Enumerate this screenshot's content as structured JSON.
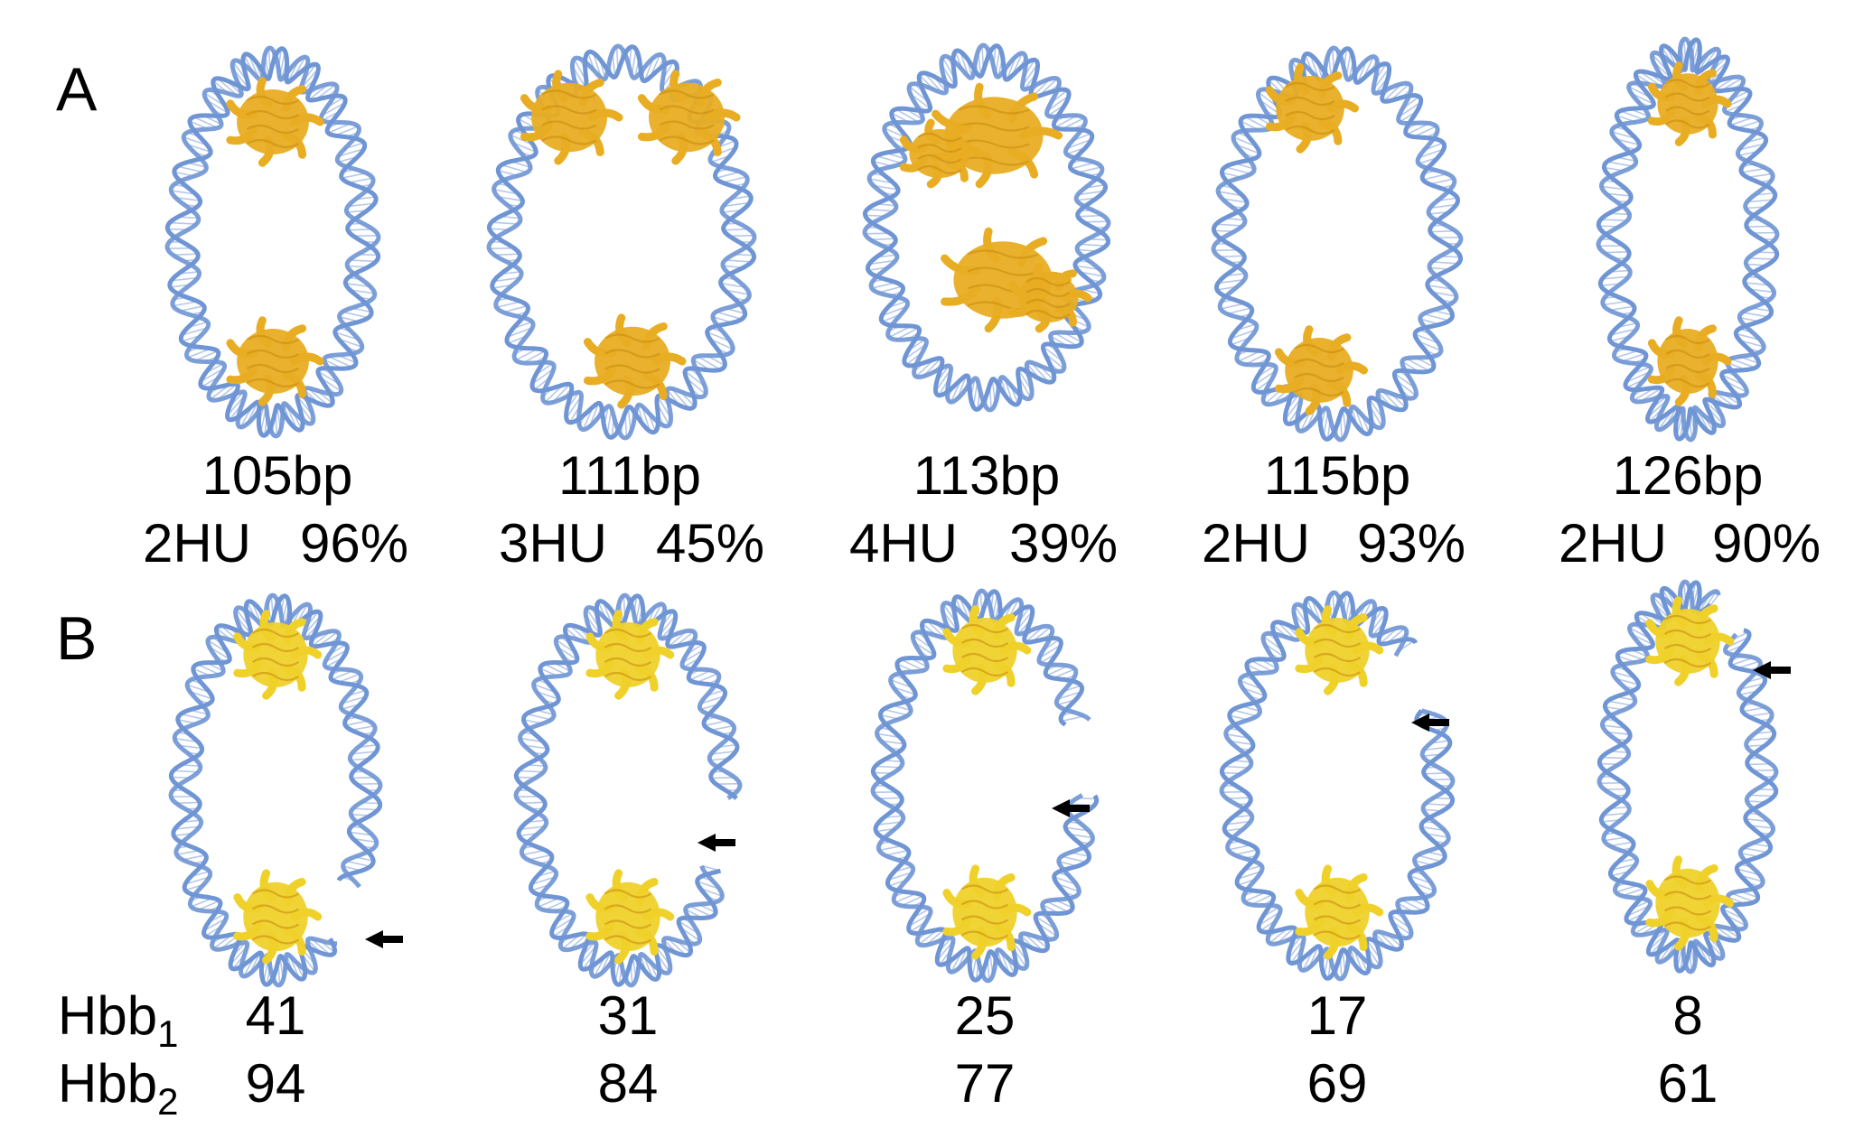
{
  "colors": {
    "dna": "#6f95d4",
    "dna_rung": "#a9bfe6",
    "protein_a": "#e8ad22",
    "protein_b": "#efd12a",
    "arrow": "#000000"
  },
  "panel_a": {
    "label": "A",
    "models": [
      {
        "length": "105bp",
        "hu": "2HU",
        "percent": "96%",
        "protein_sites": 2
      },
      {
        "length": "111bp",
        "hu": "3HU",
        "percent": "45%",
        "protein_sites": 3
      },
      {
        "length": "113bp",
        "hu": "4HU",
        "percent": "39%",
        "protein_sites": 4
      },
      {
        "length": "115bp",
        "hu": "2HU",
        "percent": "93%",
        "protein_sites": 2
      },
      {
        "length": "126bp",
        "hu": "2HU",
        "percent": "90%",
        "protein_sites": 2
      }
    ]
  },
  "panel_b": {
    "label": "B",
    "row_labels": [
      {
        "text": "Hbb",
        "sub": "1"
      },
      {
        "text": "Hbb",
        "sub": "2"
      }
    ],
    "models": [
      {
        "hbb1": "41",
        "hbb2": "94",
        "nick_marker": "arrow"
      },
      {
        "hbb1": "31",
        "hbb2": "84",
        "nick_marker": "arrow"
      },
      {
        "hbb1": "25",
        "hbb2": "77",
        "nick_marker": "arrow"
      },
      {
        "hbb1": "17",
        "hbb2": "69",
        "nick_marker": "arrow"
      },
      {
        "hbb1": "8",
        "hbb2": "61",
        "nick_marker": "arrow"
      }
    ]
  }
}
